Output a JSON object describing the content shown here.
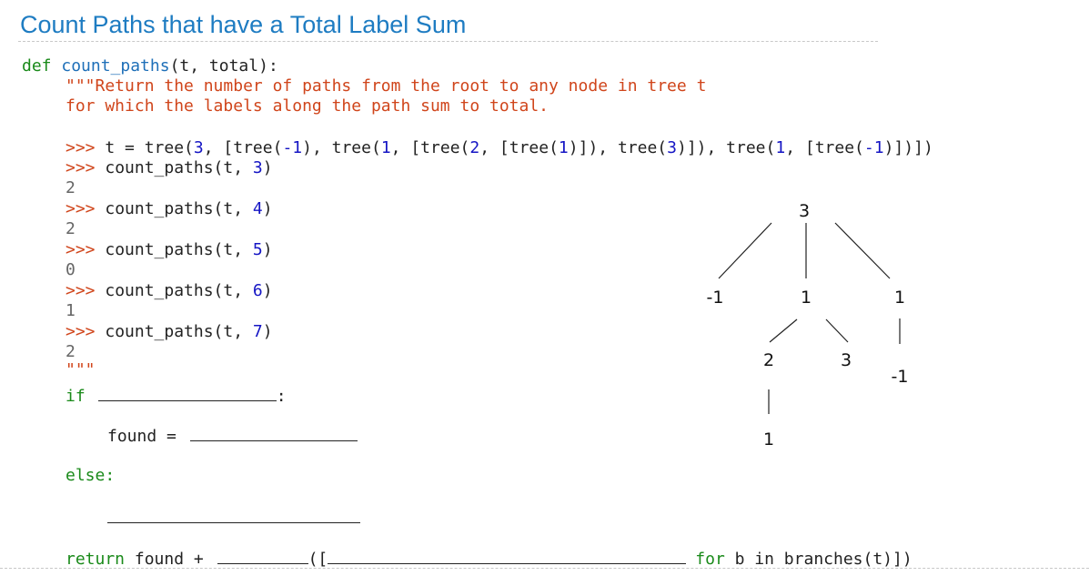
{
  "title": "Count Paths that have a Total Label Sum",
  "code": {
    "def_kw": "def",
    "func_name": "count_paths",
    "params": "(t, total):",
    "doc1": "\"\"\"Return the number of paths from the root to any node in tree t",
    "doc2": "for which the labels along the path sum to total.",
    "prompt": ">>>",
    "tree_call": {
      "a": " t = tree(",
      "n1": "3",
      "b": ", [tree(",
      "n2": "-1",
      "c": "), tree(",
      "n3": "1",
      "d": ", [tree(",
      "n4": "2",
      "e": ", [tree(",
      "n5": "1",
      "f": ")]), tree(",
      "n6": "3",
      "g": ")]), tree(",
      "n7": "1",
      "h": ", [tree(",
      "n8": "-1",
      "i": ")])])"
    },
    "examples": [
      {
        "call": " count_paths(t, ",
        "arg": "3",
        "close": ")",
        "result": "2"
      },
      {
        "call": " count_paths(t, ",
        "arg": "4",
        "close": ")",
        "result": "2"
      },
      {
        "call": " count_paths(t, ",
        "arg": "5",
        "close": ")",
        "result": "0"
      },
      {
        "call": " count_paths(t, ",
        "arg": "6",
        "close": ")",
        "result": "1"
      },
      {
        "call": " count_paths(t, ",
        "arg": "7",
        "close": ")",
        "result": "2"
      }
    ],
    "doc_close": "\"\"\"",
    "if_kw": "if",
    "if_colon": ":",
    "found_assign": "found = ",
    "else_kw": "else:",
    "return_kw": "return",
    "return_rest": " found + ",
    "open_paren": "([",
    "for_kw": "for",
    "for_rest": " b in branches(t)])"
  },
  "tree": {
    "root": "3",
    "children": [
      "-1",
      "1",
      "1"
    ],
    "mid_children": [
      "2",
      "3"
    ],
    "right_child": "-1",
    "leaf": "1"
  }
}
